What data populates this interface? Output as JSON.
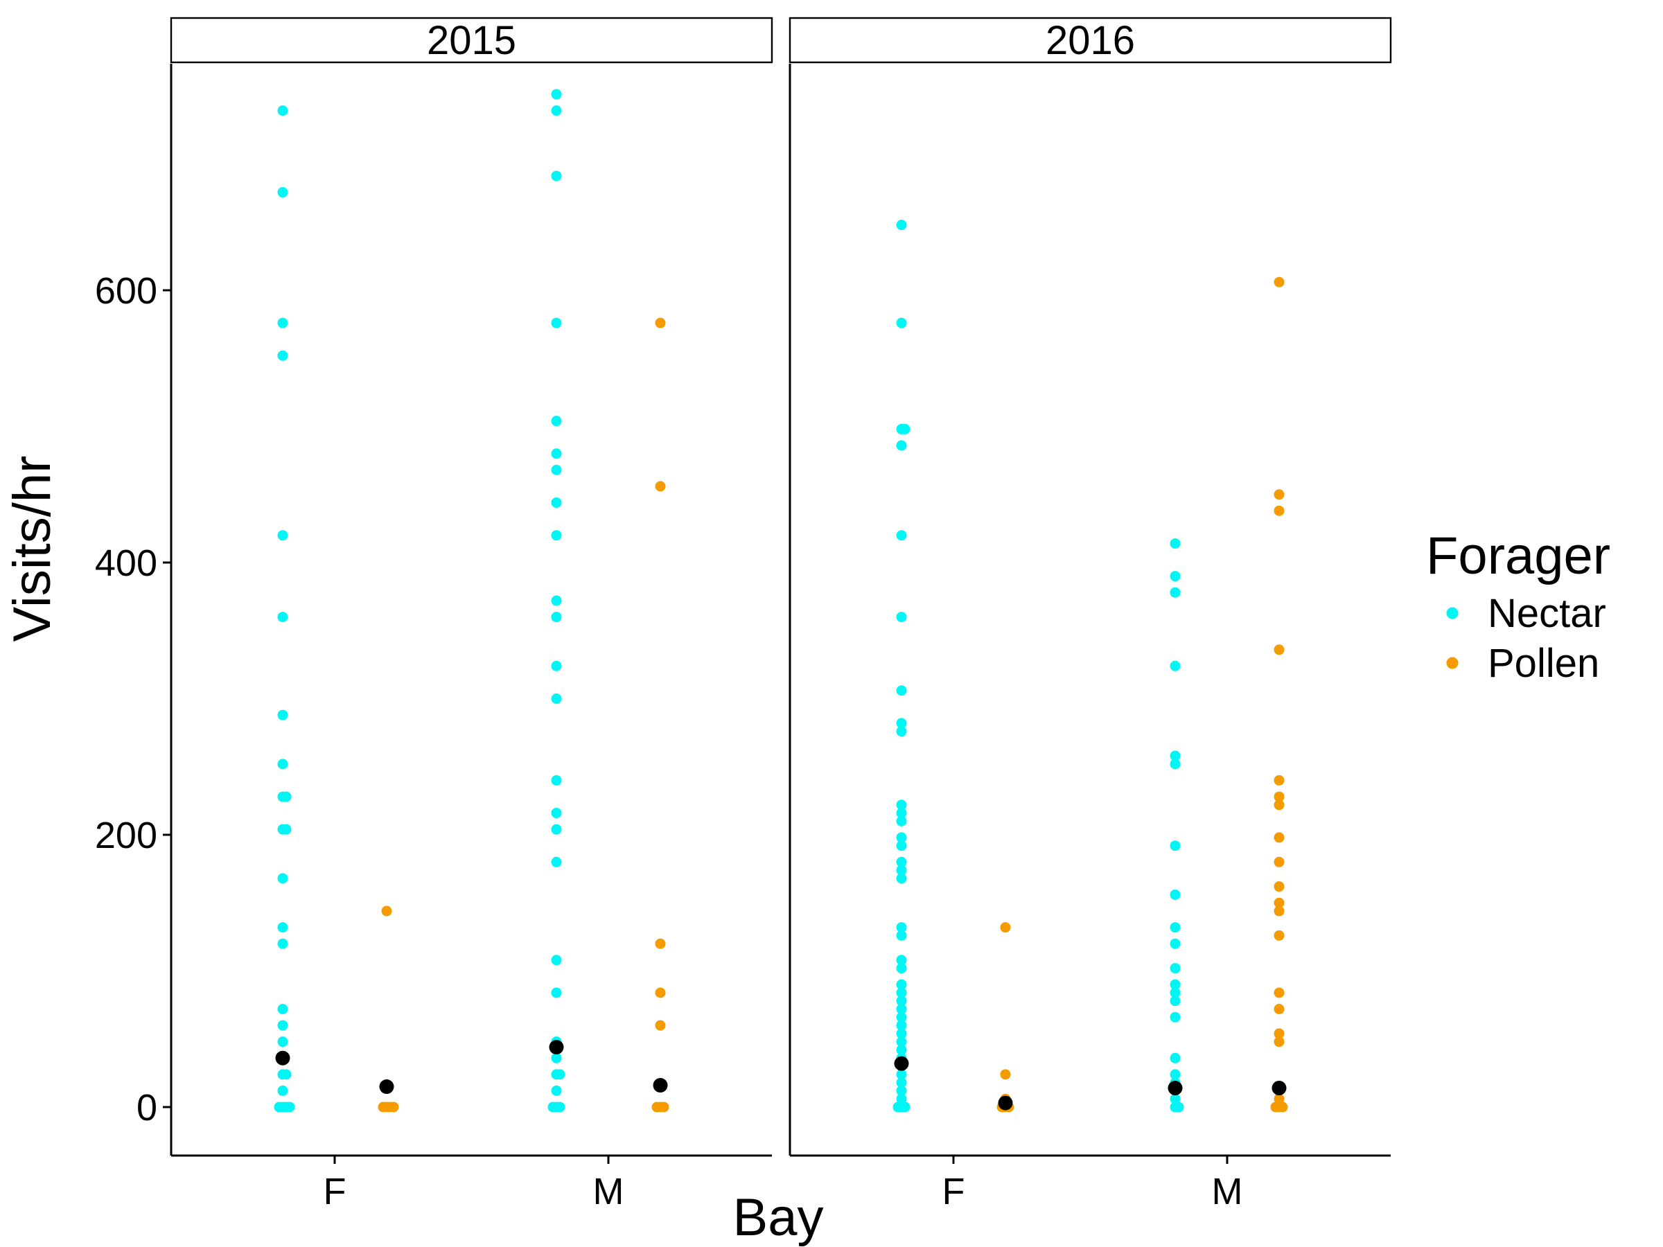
{
  "chart_data": {
    "type": "scatter",
    "title": "",
    "xlabel": "Bay",
    "ylabel": "Visits/hr",
    "ylim": [
      -60,
      760
    ],
    "yticks": [
      0,
      200,
      400,
      600
    ],
    "x_categories": [
      "F",
      "M"
    ],
    "grid": false,
    "legend": {
      "title": "Forager",
      "placement": "right",
      "entries": [
        {
          "name": "Nectar",
          "color": "#00F5F5"
        },
        {
          "name": "Pollen",
          "color": "#F59B00"
        }
      ]
    },
    "mean_marker_color": "#000000",
    "facets": [
      {
        "label": "2015",
        "groups": [
          {
            "bay": "F",
            "forager": "Nectar",
            "mean": 36,
            "values": [
              732,
              672,
              576,
              552,
              420,
              360,
              288,
              252,
              228,
              228,
              204,
              204,
              168,
              132,
              120,
              72,
              60,
              48,
              36,
              24,
              24,
              12,
              0,
              0,
              0,
              0
            ]
          },
          {
            "bay": "F",
            "forager": "Pollen",
            "mean": 15,
            "values": [
              144,
              0,
              0,
              0,
              0
            ]
          },
          {
            "bay": "M",
            "forager": "Nectar",
            "mean": 44,
            "values": [
              744,
              732,
              684,
              576,
              504,
              480,
              468,
              444,
              420,
              372,
              360,
              324,
              300,
              240,
              216,
              204,
              180,
              108,
              84,
              48,
              36,
              24,
              24,
              12,
              0,
              0,
              0
            ]
          },
          {
            "bay": "M",
            "forager": "Pollen",
            "mean": 16,
            "values": [
              576,
              456,
              120,
              84,
              60,
              0,
              0,
              0
            ]
          }
        ]
      },
      {
        "label": "2016",
        "groups": [
          {
            "bay": "F",
            "forager": "Nectar",
            "mean": 32,
            "values": [
              648,
              576,
              498,
              498,
              486,
              420,
              360,
              306,
              282,
              276,
              222,
              216,
              210,
              198,
              192,
              180,
              174,
              168,
              132,
              126,
              108,
              102,
              90,
              84,
              78,
              72,
              66,
              60,
              54,
              48,
              42,
              36,
              30,
              24,
              18,
              12,
              6,
              0,
              0,
              0
            ]
          },
          {
            "bay": "F",
            "forager": "Pollen",
            "mean": 3,
            "values": [
              132,
              24,
              6,
              0,
              0,
              0
            ]
          },
          {
            "bay": "M",
            "forager": "Nectar",
            "mean": 14,
            "values": [
              414,
              390,
              378,
              324,
              258,
              252,
              192,
              156,
              132,
              120,
              102,
              90,
              84,
              78,
              66,
              36,
              24,
              18,
              12,
              6,
              0,
              0
            ]
          },
          {
            "bay": "M",
            "forager": "Pollen",
            "mean": 14,
            "values": [
              606,
              450,
              438,
              336,
              240,
              228,
              222,
              198,
              180,
              162,
              150,
              144,
              126,
              84,
              72,
              54,
              48,
              12,
              6,
              0,
              0,
              0
            ]
          }
        ]
      }
    ]
  }
}
